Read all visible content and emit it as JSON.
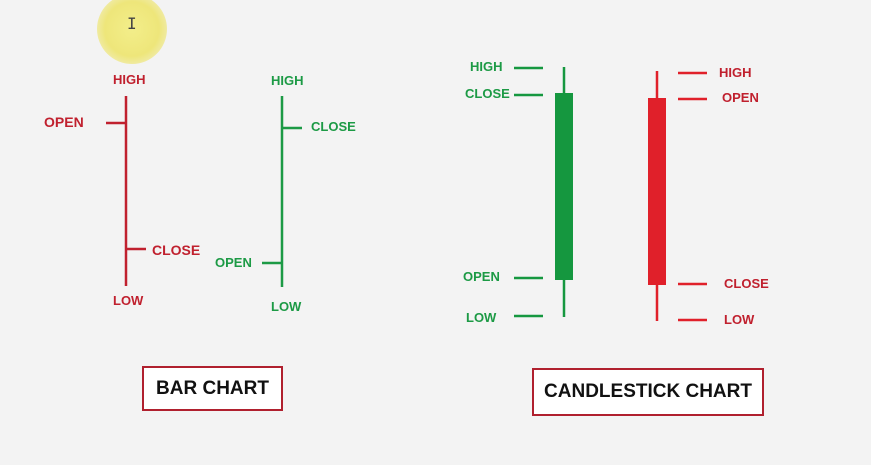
{
  "cursor": {
    "icon": "text-cursor-icon",
    "glyph": "I"
  },
  "bar_chart": {
    "title": "BAR CHART",
    "bearish": {
      "high": "HIGH",
      "open": "OPEN",
      "close": "CLOSE",
      "low": "LOW",
      "color": "#c0202e"
    },
    "bullish": {
      "high": "HIGH",
      "close": "CLOSE",
      "open": "OPEN",
      "low": "LOW",
      "color": "#1c9a45"
    }
  },
  "candlestick_chart": {
    "title": "CANDLESTICK CHART",
    "bullish": {
      "high": "HIGH",
      "close": "CLOSE",
      "open": "OPEN",
      "low": "LOW",
      "color": "#15973f"
    },
    "bearish": {
      "high": "HIGH",
      "open": "OPEN",
      "close": "CLOSE",
      "low": "LOW",
      "color": "#e0202a"
    }
  },
  "colors": {
    "box_border": "#b0202e",
    "background": "#f3f3f3"
  }
}
